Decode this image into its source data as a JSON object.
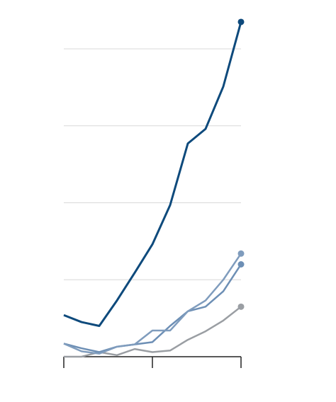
{
  "chart_data": {
    "type": "line",
    "x": [
      0,
      1,
      2,
      3,
      4,
      5,
      6,
      7,
      8,
      9,
      10
    ],
    "xlim": [
      0,
      10
    ],
    "xticks": [
      0,
      5,
      10
    ],
    "ylim": [
      0,
      4.4
    ],
    "yticks": [
      0,
      1,
      2,
      3,
      4
    ],
    "grid": true,
    "series": [
      {
        "color": "#0e4a7c",
        "values": [
          0.54,
          0.45,
          0.4,
          0.73,
          1.09,
          1.46,
          1.97,
          2.77,
          2.96,
          3.51,
          4.35
        ]
      },
      {
        "color": "#7f9cbd",
        "values": [
          0.17,
          0.07,
          0.04,
          0.13,
          0.16,
          0.34,
          0.34,
          0.59,
          0.73,
          1.0,
          1.34
        ]
      },
      {
        "color": "#6d8fb5",
        "values": [
          0.17,
          0.11,
          0.06,
          0.13,
          0.16,
          0.19,
          0.4,
          0.59,
          0.65,
          0.85,
          1.2
        ]
      },
      {
        "color": "#9a9ea3",
        "values": [
          0,
          0,
          0.06,
          0.02,
          0.1,
          0.06,
          0.08,
          0.22,
          0.33,
          0.47,
          0.65
        ]
      }
    ]
  }
}
